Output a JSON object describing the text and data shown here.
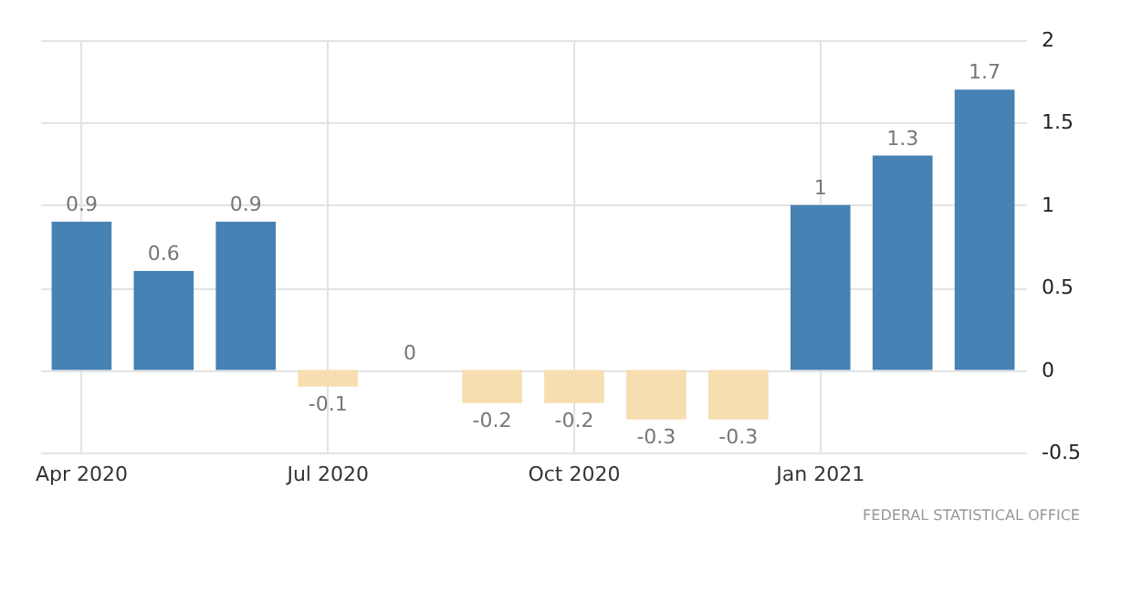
{
  "chart_data": {
    "type": "bar",
    "categories": [
      "Apr 2020",
      null,
      null,
      "Jul 2020",
      null,
      null,
      "Oct 2020",
      null,
      null,
      "Jan 2021",
      null,
      null
    ],
    "values": [
      0.9,
      0.6,
      0.9,
      -0.1,
      0,
      -0.2,
      -0.2,
      -0.3,
      -0.3,
      1,
      1.3,
      1.7
    ],
    "colors": [
      "#4682b4",
      "#4682b4",
      "#4682b4",
      "#f7deb0",
      "#f7deb0",
      "#f7deb0",
      "#f7deb0",
      "#f7deb0",
      "#f7deb0",
      "#4682b4",
      "#4682b4",
      "#4682b4"
    ],
    "ylim": [
      -0.5,
      2
    ],
    "yticks": [
      -0.5,
      0,
      0.5,
      1,
      1.5,
      2
    ],
    "grid": true,
    "data_labels": true,
    "annotations": [
      "FEDERAL STATISTICAL OFFICE"
    ]
  }
}
